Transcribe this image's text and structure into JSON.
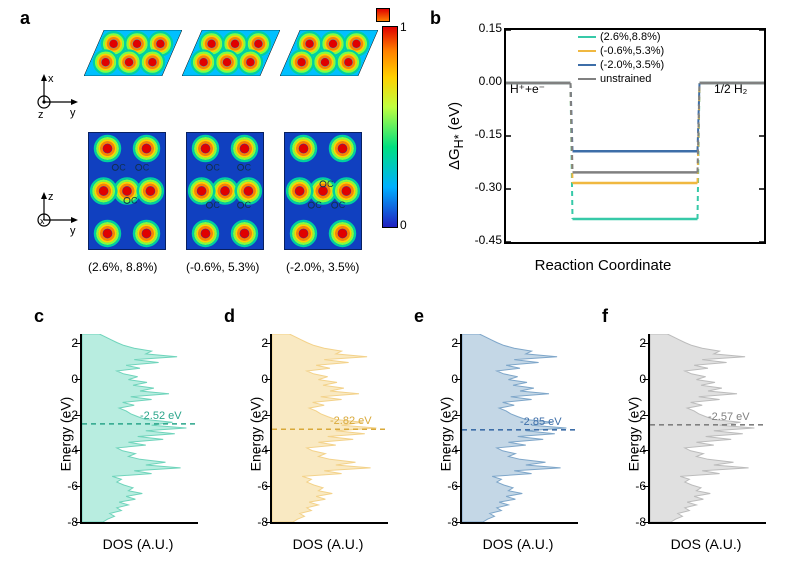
{
  "panel_a": {
    "label": "a",
    "strain_labels": [
      "(2.6%, 8.8%)",
      "(-0.6%, 5.3%)",
      "(-2.0%, 3.5%)"
    ],
    "colormap": {
      "stops": [
        "#2020c0",
        "#00b0ff",
        "#00e080",
        "#c0ff40",
        "#ffd000",
        "#ff8000",
        "#e00000"
      ],
      "min_label": "0",
      "max_label": "1"
    },
    "top_axes": {
      "labels": [
        "x",
        "y"
      ],
      "out_of_plane": "z"
    },
    "bottom_axes": {
      "labels": [
        "z",
        "y"
      ],
      "out_of_plane": "x"
    },
    "atom_label": "C"
  },
  "panel_b": {
    "label": "b",
    "ylabel": "ΔG_{H*} (eV)",
    "xlabel": "Reaction Coordinate",
    "ylim": [
      -0.45,
      0.15
    ],
    "ytick_step": 0.15,
    "yticks": [
      0.15,
      0.0,
      -0.15,
      -0.3,
      -0.45
    ],
    "end_labels": {
      "left": "H⁺+e⁻",
      "right": "1/2 H₂"
    },
    "plateau_x": [
      0.0,
      0.25,
      0.75,
      1.0
    ],
    "series": [
      {
        "name": "(2.6%,8.8%)",
        "color": "#36c9a8",
        "dG": -0.385
      },
      {
        "name": "(-0.6%,5.3%)",
        "color": "#f0b840",
        "dG": -0.283
      },
      {
        "name": "(-2.0%,3.5%)",
        "color": "#3d6ea8",
        "dG": -0.193
      },
      {
        "name": "unstrained",
        "color": "#808080",
        "dG": -0.253
      }
    ],
    "line_width": 2.5
  },
  "dos_common": {
    "ylabel": "Energy (eV)",
    "xlabel": "DOS (A.U.)",
    "ylim": [
      -8,
      2.5
    ],
    "yticks": [
      2,
      0,
      -2,
      -4,
      -6,
      -8
    ]
  },
  "panel_c": {
    "label": "c",
    "color": "#6fd4bb",
    "fill": "#b8ede0",
    "d_center": -2.52,
    "d_center_label": "-2.52 eV",
    "ann_color": "#2aa58a"
  },
  "panel_d": {
    "label": "d",
    "color": "#f3d28a",
    "fill": "#f9e9c2",
    "d_center": -2.82,
    "d_center_label": "-2.82 eV",
    "ann_color": "#d9a93a"
  },
  "panel_e": {
    "label": "e",
    "color": "#7ea6c9",
    "fill": "#c4d7e6",
    "d_center": -2.85,
    "d_center_label": "-2.85 eV",
    "ann_color": "#3d6ea8"
  },
  "panel_f": {
    "label": "f",
    "color": "#bcbcbc",
    "fill": "#e0e0e0",
    "d_center": -2.57,
    "d_center_label": "-2.57 eV",
    "ann_color": "#808080"
  },
  "dos_profile": [
    0.18,
    0.22,
    0.28,
    0.24,
    0.34,
    0.3,
    0.4,
    0.32,
    0.46,
    0.38,
    0.52,
    0.4,
    0.44,
    0.36,
    0.3,
    0.34,
    0.26,
    0.6,
    0.45,
    0.85,
    0.55,
    0.72,
    0.5,
    0.4,
    0.46,
    0.35,
    0.3,
    0.55,
    0.4,
    0.7,
    0.48,
    0.8,
    0.55,
    0.9,
    0.6,
    0.78,
    0.55,
    0.48,
    0.42,
    0.38,
    0.32,
    0.45,
    0.35,
    0.6,
    0.42,
    0.75,
    0.5,
    0.62,
    0.44,
    0.56,
    0.4,
    0.48,
    0.36,
    0.3,
    0.5,
    0.38,
    0.66,
    0.45,
    0.82,
    0.55,
    0.6,
    0.45,
    0.36,
    0.3,
    0.25,
    0.2,
    0.15
  ]
}
